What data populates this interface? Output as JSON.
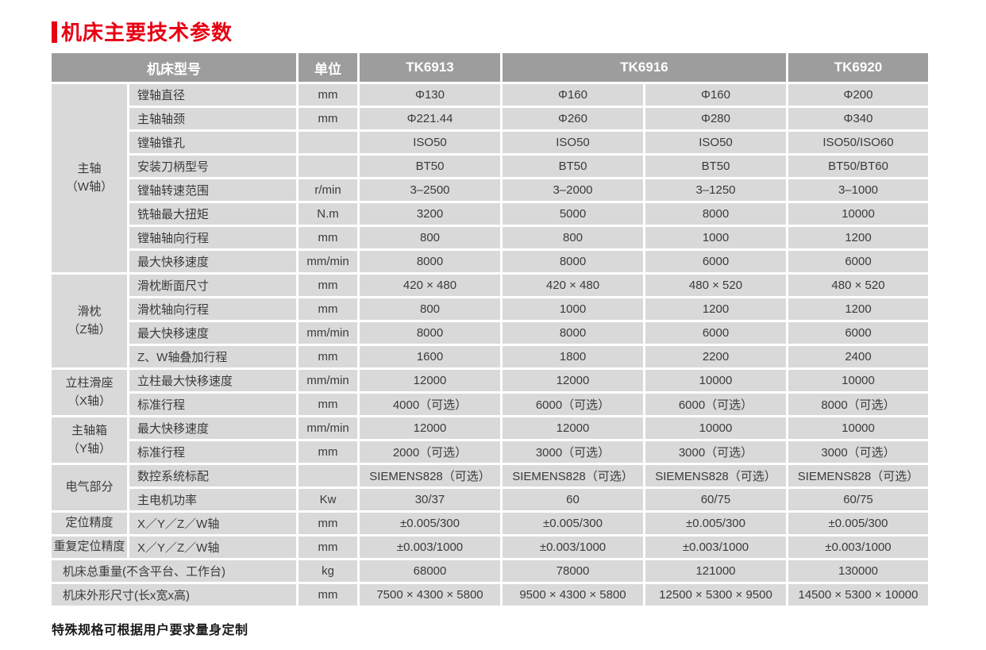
{
  "title": "机床主要技术参数",
  "header": {
    "col_model": "机床型号",
    "col_unit": "单位",
    "models": [
      {
        "label": "TK6913",
        "span": 1
      },
      {
        "label": "TK6916",
        "span": 2
      },
      {
        "label": "TK6920",
        "span": 1
      }
    ]
  },
  "groups": [
    {
      "label": [
        "主轴",
        "（W轴）"
      ],
      "rows": [
        {
          "param": "镗轴直径",
          "unit": "mm",
          "values": [
            "Φ130",
            "Φ160",
            "Φ160",
            "Φ200"
          ]
        },
        {
          "param": "主轴轴颈",
          "unit": "mm",
          "values": [
            "Φ221.44",
            "Φ260",
            "Φ280",
            "Φ340"
          ]
        },
        {
          "param": "镗轴锥孔",
          "unit": "",
          "values": [
            "ISO50",
            "ISO50",
            "ISO50",
            "ISO50/ISO60"
          ]
        },
        {
          "param": "安装刀柄型号",
          "unit": "",
          "values": [
            "BT50",
            "BT50",
            "BT50",
            "BT50/BT60"
          ]
        },
        {
          "param": "镗轴转速范围",
          "unit": "r/min",
          "values": [
            "3–2500",
            "3–2000",
            "3–1250",
            "3–1000"
          ]
        },
        {
          "param": "铣轴最大扭矩",
          "unit": "N.m",
          "values": [
            "3200",
            "5000",
            "8000",
            "10000"
          ]
        },
        {
          "param": "镗轴轴向行程",
          "unit": "mm",
          "values": [
            "800",
            "800",
            "1000",
            "1200"
          ]
        },
        {
          "param": "最大快移速度",
          "unit": "mm/min",
          "values": [
            "8000",
            "8000",
            "6000",
            "6000"
          ]
        }
      ]
    },
    {
      "label": [
        "滑枕",
        "（Z轴）"
      ],
      "rows": [
        {
          "param": "滑枕断面尺寸",
          "unit": "mm",
          "values": [
            "420 × 480",
            "420 × 480",
            "480 × 520",
            "480 × 520"
          ]
        },
        {
          "param": "滑枕轴向行程",
          "unit": "mm",
          "values": [
            "800",
            "1000",
            "1200",
            "1200"
          ]
        },
        {
          "param": "最大快移速度",
          "unit": "mm/min",
          "values": [
            "8000",
            "8000",
            "6000",
            "6000"
          ]
        },
        {
          "param": "Z、W轴叠加行程",
          "unit": "mm",
          "values": [
            "1600",
            "1800",
            "2200",
            "2400"
          ]
        }
      ]
    },
    {
      "label": [
        "立柱滑座",
        "（X轴）"
      ],
      "rows": [
        {
          "param": "立柱最大快移速度",
          "unit": "mm/min",
          "values": [
            "12000",
            "12000",
            "10000",
            "10000"
          ]
        },
        {
          "param": "标准行程",
          "unit": "mm",
          "values": [
            "4000（可选）",
            "6000（可选）",
            "6000（可选）",
            "8000（可选）"
          ]
        }
      ]
    },
    {
      "label": [
        "主轴箱",
        "（Y轴）"
      ],
      "rows": [
        {
          "param": "最大快移速度",
          "unit": "mm/min",
          "values": [
            "12000",
            "12000",
            "10000",
            "10000"
          ]
        },
        {
          "param": "标准行程",
          "unit": "mm",
          "values": [
            "2000（可选）",
            "3000（可选）",
            "3000（可选）",
            "3000（可选）"
          ]
        }
      ]
    },
    {
      "label": [
        "电气部分"
      ],
      "rows": [
        {
          "param": "数控系统标配",
          "unit": "",
          "values": [
            "SIEMENS828（可选）",
            "SIEMENS828（可选）",
            "SIEMENS828（可选）",
            "SIEMENS828（可选）"
          ]
        },
        {
          "param": "主电机功率",
          "unit": "Kw",
          "values": [
            "30/37",
            "60",
            "60/75",
            "60/75"
          ]
        }
      ]
    },
    {
      "label": [
        "定位精度"
      ],
      "rows": [
        {
          "param": "X／Y／Z／W轴",
          "unit": "mm",
          "values": [
            "±0.005/300",
            "±0.005/300",
            "±0.005/300",
            "±0.005/300"
          ]
        }
      ]
    },
    {
      "label": [
        "重复定位精度"
      ],
      "rows": [
        {
          "param": "X／Y／Z／W轴",
          "unit": "mm",
          "values": [
            "±0.003/1000",
            "±0.003/1000",
            "±0.003/1000",
            "±0.003/1000"
          ]
        }
      ]
    }
  ],
  "full_rows": [
    {
      "label": "机床总重量(不含平台、工作台)",
      "unit": "kg",
      "values": [
        "68000",
        "78000",
        "121000",
        "130000"
      ]
    },
    {
      "label": "机床外形尺寸(长x宽x高)",
      "unit": "mm",
      "values": [
        "7500 × 4300 × 5800",
        "9500 × 4300 × 5800",
        "12500 × 5300 × 9500",
        "14500 × 5300 × 10000"
      ]
    }
  ],
  "footer_note": "特殊规格可根据用户要求量身定制",
  "colors": {
    "accent_red": "#e60012",
    "header_bg": "#9d9d9d",
    "cell_bg": "#d9d9d9",
    "header_text": "#ffffff",
    "body_text": "#3b3b3b"
  }
}
